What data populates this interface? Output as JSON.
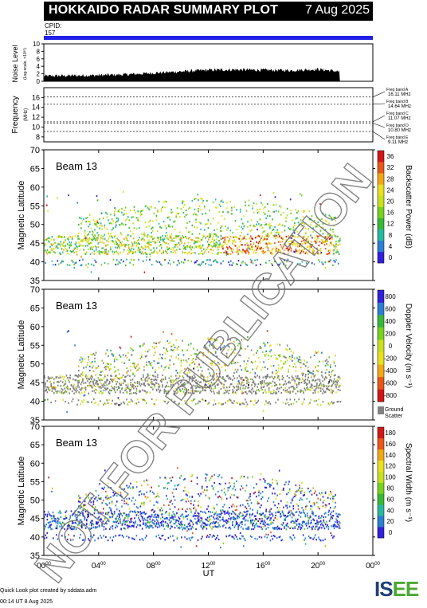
{
  "header": {
    "title": "HOKKAIDO RADAR SUMMARY PLOT",
    "date": "7 Aug 2025",
    "cpid_label": "CPID:",
    "cpid_value": "157"
  },
  "noise_panel": {
    "ylabel": "Noise Level",
    "ylabel_unit": "(Log-scale, ×10³⁰)",
    "yticks": [
      "0",
      "2",
      "4",
      "6",
      "8",
      "10"
    ]
  },
  "freq_panel": {
    "ylabel": "Frequency",
    "ylabel_unit": "(MHz)",
    "yticks": [
      "8",
      "10",
      "12",
      "14",
      "16"
    ],
    "bands": [
      {
        "label": "Freq band A",
        "value": "16.11 MHz",
        "mhz": 16.11
      },
      {
        "label": "Freq band B",
        "value": "14.64 MHz",
        "mhz": 14.64
      },
      {
        "label": "Freq band C",
        "value": "11.07 MHz",
        "mhz": 11.07
      },
      {
        "label": "Freq band D",
        "value": "10.80 MHz",
        "mhz": 10.8
      },
      {
        "label": "Freq band E",
        "value": "9.11 MHz",
        "mhz": 9.11
      }
    ]
  },
  "panels": [
    {
      "beam": "Beam 13",
      "ylabel": "Magnetic Latitude",
      "colorbar_label": "Backscatter Power (dB)",
      "colorbar_ticks": [
        "0",
        "4",
        "8",
        "12",
        "16",
        "20",
        "24",
        "28",
        "32",
        "36"
      ],
      "colorbar_colors": [
        "#3020d8",
        "#2c7fd0",
        "#28b8a0",
        "#38b838",
        "#78d020",
        "#c8e020",
        "#e8e020",
        "#f0a818",
        "#e85818",
        "#d01818"
      ]
    },
    {
      "beam": "Beam 13",
      "ylabel": "Magnetic Latitude",
      "colorbar_label": "Doppler Velocity (m s⁻¹)",
      "colorbar_ticks": [
        "-800",
        "-600",
        "-400",
        "-200",
        "0",
        "200",
        "400",
        "600",
        "800"
      ],
      "colorbar_colors": [
        "#d01818",
        "#e85818",
        "#f0a818",
        "#e8e020",
        "#c8e020",
        "#78d020",
        "#38b838",
        "#2c7fd0",
        "#3020d8"
      ],
      "ground_label": "Ground",
      "ground_label2": "Scatter",
      "ground_color": "#808080"
    },
    {
      "beam": "Beam 13",
      "ylabel": "Magnetic Latitude",
      "colorbar_label": "Spectral Width (m s⁻¹)",
      "colorbar_ticks": [
        "0",
        "20",
        "40",
        "60",
        "80",
        "100",
        "120",
        "140",
        "160",
        "180"
      ],
      "colorbar_colors": [
        "#3020d8",
        "#2c7fd0",
        "#28b8a0",
        "#38b838",
        "#78d020",
        "#c8e020",
        "#e8e020",
        "#f0a818",
        "#e85818",
        "#d01818"
      ]
    }
  ],
  "lat_ticks": [
    "35",
    "40",
    "45",
    "50",
    "55",
    "60",
    "65",
    "70"
  ],
  "time_ticks": [
    "00",
    "04",
    "08",
    "12",
    "16",
    "20",
    "00"
  ],
  "time_ticks_sup": "00",
  "xlabel": "UT",
  "watermark": "NOT FOR PUBLICATION",
  "footer": {
    "line1": "Quick Look plot created by sddata.adm",
    "line2": "00:14 UT  8 Aug 2025"
  },
  "logo": {
    "text1": "IS",
    "text2": "E",
    "text3": "E"
  },
  "chart_data": [
    {
      "type": "area",
      "title": "Noise Level",
      "xlabel": "",
      "ylabel": "Noise Level",
      "xlim": [
        0,
        24
      ],
      "ylim": [
        0,
        10
      ],
      "x": [
        0,
        2,
        4,
        6,
        8,
        10,
        12,
        14,
        16,
        18,
        20,
        21.6
      ],
      "y": [
        1.4,
        1.5,
        1.6,
        1.8,
        2.2,
        2.6,
        3.0,
        3.1,
        3.0,
        2.9,
        3.2,
        2.6
      ]
    },
    {
      "type": "line",
      "title": "Frequency",
      "ylabel": "Frequency (MHz)",
      "xlim": [
        0,
        24
      ],
      "ylim": [
        7,
        18
      ],
      "series": [
        {
          "name": "16.11 MHz",
          "values": [
            16.11,
            16.11
          ]
        },
        {
          "name": "14.64 MHz",
          "values": [
            14.64,
            14.64
          ]
        },
        {
          "name": "11.07 MHz",
          "values": [
            11.07,
            11.07
          ]
        },
        {
          "name": "10.80 MHz",
          "values": [
            10.8,
            10.8
          ]
        },
        {
          "name": "9.11 MHz",
          "values": [
            9.11,
            9.11
          ]
        }
      ]
    },
    {
      "type": "heatmap",
      "title": "Beam 13",
      "xlabel": "UT",
      "ylabel": "Magnetic Latitude",
      "xlim": [
        0,
        24
      ],
      "ylim": [
        35,
        70
      ],
      "colorbar": "Backscatter Power (dB)",
      "crange": [
        0,
        36
      ]
    },
    {
      "type": "heatmap",
      "title": "Beam 13",
      "xlabel": "UT",
      "ylabel": "Magnetic Latitude",
      "xlim": [
        0,
        24
      ],
      "ylim": [
        35,
        70
      ],
      "colorbar": "Doppler Velocity (m s⁻¹)",
      "crange": [
        -800,
        800
      ]
    },
    {
      "type": "heatmap",
      "title": "Beam 13",
      "xlabel": "UT",
      "ylabel": "Magnetic Latitude",
      "xlim": [
        0,
        24
      ],
      "ylim": [
        35,
        70
      ],
      "colorbar": "Spectral Width (m s⁻¹)",
      "crange": [
        0,
        180
      ]
    }
  ]
}
